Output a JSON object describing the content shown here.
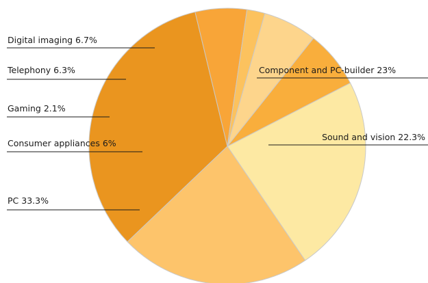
{
  "chart_data": {
    "type": "pie",
    "slices": [
      {
        "label": "Component and PC-builder 23%",
        "value": 23.0,
        "color": "#FDE9A3"
      },
      {
        "label": "Sound and vision 22.3%",
        "value": 22.3,
        "color": "#FDC46B"
      },
      {
        "label": "PC 33.3%",
        "value": 33.3,
        "color": "#EA951F"
      },
      {
        "label": "Consumer appliances  6%",
        "value": 6.0,
        "color": "#F8A538"
      },
      {
        "label": "Gaming 2.1%",
        "value": 2.1,
        "color": "#FCC25E"
      },
      {
        "label": "Telephony 6.3%",
        "value": 6.3,
        "color": "#FDD58C"
      },
      {
        "label": "Digital imaging 6.7%",
        "value": 6.7,
        "color": "#F9AE3C"
      }
    ],
    "legend": "none (leader-line labels)"
  }
}
